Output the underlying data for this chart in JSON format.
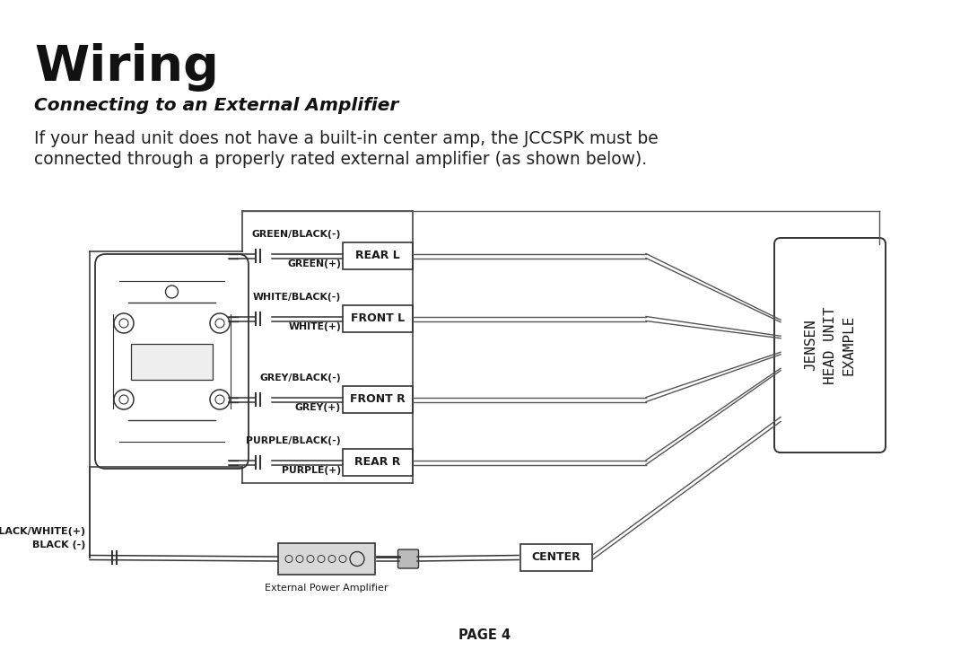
{
  "title": "Wiring",
  "subtitle": "Connecting to an External Amplifier",
  "body_text_1": "If your head unit does not have a built-in center amp, the JCCSPK must be",
  "body_text_2": "connected through a properly rated external amplifier (as shown below).",
  "page_label": "PAGE 4",
  "channel_labels": [
    "REAR L",
    "FRONT L",
    "FRONT R",
    "REAR R"
  ],
  "center_label": "CENTER",
  "wire_labels_neg": [
    "GREEN/BLACK(-)",
    "WHITE/BLACK(-)",
    "GREY/BLACK(-)",
    "PURPLE/BLACK(-)"
  ],
  "wire_labels_pos": [
    "GREEN(+)",
    "WHITE(+)",
    "GREY(+)",
    "PURPLE(+)"
  ],
  "bottom_label_1": "BLACK/WHITE(+)",
  "bottom_label_2": "BLACK (-)",
  "jensen_line1": "JENSEN",
  "jensen_line2": "HEAD UNIT",
  "jensen_line3": "EXAMPLE",
  "amp_label": "External Power Amplifier",
  "bg_color": "#ffffff",
  "text_color": "#1a1a1a",
  "line_color": "#555555",
  "dark_line": "#333333"
}
